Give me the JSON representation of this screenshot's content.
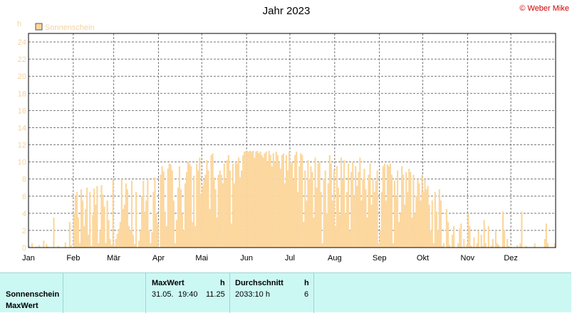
{
  "header": {
    "title": "Jahr 2023",
    "copyright": "© Weber Mike"
  },
  "chart_data": {
    "type": "bar",
    "title": "Jahr 2023",
    "ylabel": "h",
    "ylim": [
      0,
      25
    ],
    "yticks": [
      0,
      2,
      4,
      6,
      8,
      10,
      12,
      14,
      16,
      18,
      20,
      22,
      24
    ],
    "grid": true,
    "legend": {
      "entries": [
        "Sonnenschein"
      ],
      "position": "top-left"
    },
    "color": "#fcd79e",
    "xticks": [
      "Jan",
      "Feb",
      "Mär",
      "Apr",
      "Mai",
      "Jun",
      "Jul",
      "Aug",
      "Sep",
      "Okt",
      "Nov",
      "Dez"
    ],
    "series": [
      {
        "name": "Sonnenschein",
        "values": [
          0.2,
          0,
          0.5,
          0,
          0,
          0.1,
          0,
          0.3,
          0,
          0,
          0.8,
          0,
          0.4,
          0.1,
          0,
          0,
          0,
          3.5,
          0,
          0,
          0.2,
          0,
          0,
          0,
          0,
          0.6,
          0,
          0,
          3.0,
          0.3,
          0,
          4.0,
          6.0,
          6.5,
          3.5,
          0.5,
          6.8,
          5.5,
          2.5,
          4.5,
          7.0,
          1.5,
          6.5,
          0.2,
          3.8,
          6.9,
          5.0,
          7.2,
          0.5,
          2.0,
          7.3,
          6.2,
          4.8,
          0.5,
          5.5,
          3.2,
          1.0,
          0.3,
          7.9,
          0.2,
          1.0,
          1.6,
          2.2,
          3.0,
          8.0,
          4.5,
          5.0,
          7.5,
          6.8,
          2.5,
          2.0,
          7.8,
          1.5,
          0.4,
          6.5,
          0,
          0.8,
          2.0,
          6.0,
          7.8,
          4.2,
          5.5,
          8.0,
          2.0,
          0.5,
          1.8,
          6.5,
          8.2,
          4.0,
          2.8,
          0,
          8.5,
          9.5,
          8.9,
          4.2,
          2.5,
          9.2,
          9.8,
          9.7,
          9.0,
          5.5,
          0.5,
          3.2,
          7.0,
          9.5,
          6.8,
          4.0,
          2.0,
          7.5,
          8.8,
          10.0,
          9.8,
          9.5,
          3.0,
          8.4,
          2.5,
          9.8,
          9.0,
          10.5,
          6.2,
          7.2,
          7.9,
          8.5,
          10.2,
          9.0,
          4.5,
          10.8,
          11.0,
          8.2,
          6.8,
          3.5,
          8.5,
          9.0,
          8.5,
          7.5,
          9.8,
          8.0,
          10.2,
          10.8,
          9.0,
          2.8,
          9.8,
          7.5,
          10.0,
          9.8,
          10.5,
          8.2,
          9.0,
          10.8,
          11.2,
          11.25,
          11.3,
          11.2,
          11.3,
          11.2,
          11.3,
          10.5,
          11.2,
          11.3,
          11.0,
          11.2,
          10.8,
          10.5,
          11.0,
          11.2,
          10.0,
          11.3,
          10.8,
          9.5,
          11.0,
          10.0,
          11.2,
          10.8,
          10.0,
          9.2,
          10.8,
          11.0,
          7.5,
          10.8,
          9.0,
          11.2,
          9.8,
          10.0,
          8.0,
          10.8,
          11.2,
          6.5,
          9.5,
          11.0,
          10.8,
          3.0,
          9.0,
          5.5,
          10.2,
          8.0,
          9.5,
          8.8,
          3.5,
          10.5,
          7.0,
          9.8,
          10.0,
          6.5,
          0.5,
          8.0,
          9.0,
          4.0,
          7.5,
          10.8,
          9.8,
          5.5,
          9.0,
          2.5,
          9.5,
          7.0,
          3.8,
          10.5,
          8.0,
          10.2,
          4.0,
          6.5,
          9.8,
          2.0,
          8.8,
          10.0,
          6.0,
          9.5,
          7.2,
          8.8,
          10.5,
          5.5,
          8.0,
          9.2,
          6.8,
          3.5,
          8.5,
          9.8,
          5.0,
          8.0,
          6.5,
          7.8,
          9.0,
          0.5,
          2.0,
          6.5,
          9.5,
          9.8,
          5.5,
          9.7,
          9.5,
          9.8,
          8.5,
          0.5,
          7.8,
          6.0,
          9.0,
          3.0,
          4.0,
          9.5,
          8.5,
          5.0,
          8.8,
          6.5,
          9.2,
          8.8,
          3.5,
          8.5,
          4.0,
          6.0,
          8.0,
          7.5,
          5.5,
          8.5,
          6.5,
          8.0,
          6.8,
          7.2,
          5.0,
          2.0,
          5.5,
          0.5,
          6.5,
          4.2,
          2.0,
          6.8,
          5.5,
          0.2,
          0.5,
          0,
          4.5,
          3.0,
          0.3,
          0,
          1.5,
          2.5,
          0,
          0,
          0.5,
          2.2,
          2.8,
          0,
          1.0,
          0,
          0.3,
          4.0,
          2.5,
          0.2,
          0,
          1.2,
          0,
          0.5,
          2.0,
          0,
          1.5,
          0.2,
          3.2,
          0.5,
          0,
          2.5,
          0,
          0.2,
          1.0,
          0,
          2.0,
          0.5,
          0.3,
          0,
          0,
          4.2,
          2.0,
          0,
          1.0,
          0.2,
          0,
          0,
          0,
          0,
          0,
          0.3,
          0,
          0.5,
          4.2,
          0,
          0,
          0.2,
          0,
          0,
          0,
          0,
          0,
          0.5,
          0,
          0,
          0,
          0,
          0,
          0,
          1.0,
          2.8,
          0.5,
          0,
          0,
          0,
          0,
          0.5
        ]
      }
    ]
  },
  "stats_table": {
    "row_labels": [
      "Sonnenschein",
      "MaxWert"
    ],
    "maxwert": {
      "header": "MaxWert",
      "unit": "h",
      "date": "31.05.",
      "time": "19:40",
      "value": "11.25"
    },
    "durchschnitt": {
      "header": "Durchschnitt",
      "unit": "h",
      "total": "2033:10 h",
      "value": "6"
    }
  }
}
